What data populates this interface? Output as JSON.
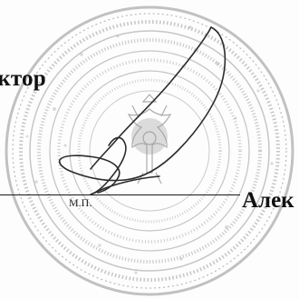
{
  "document": {
    "role_label": "ектор",
    "name_label": "Алек",
    "seal_caption": "М.П."
  },
  "stamp": {
    "type": "round-official-seal",
    "ink_color": "#8a8a8a",
    "emblem": "double-headed-eagle"
  },
  "signature": {
    "ink_color": "#2b2b2b"
  }
}
